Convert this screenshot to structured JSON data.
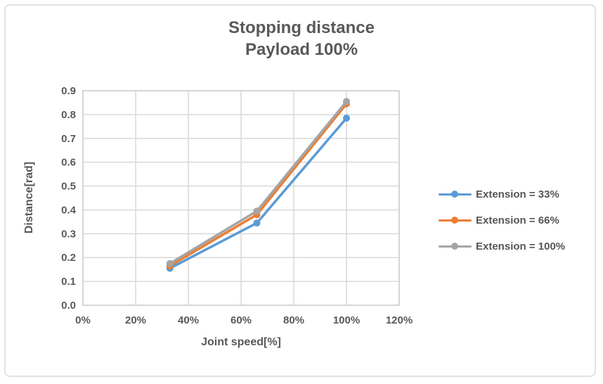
{
  "colors": {
    "frame_border": "#e2e2e2",
    "gridline": "#d9d9d9",
    "plot_border": "#cfcfcf",
    "text": "#595959",
    "background": "#ffffff"
  },
  "chart_data": {
    "type": "line",
    "title": "Stopping distance",
    "subtitle": "Payload 100%",
    "xlabel": "Joint speed[%]",
    "ylabel": "Distance[rad]",
    "xlim": [
      0,
      120
    ],
    "ylim": [
      0,
      0.9
    ],
    "grid": true,
    "legend_position": "right",
    "x_ticks": [
      "0%",
      "20%",
      "40%",
      "60%",
      "80%",
      "100%",
      "120%"
    ],
    "x_tick_values": [
      0,
      20,
      40,
      60,
      80,
      100,
      120
    ],
    "y_ticks": [
      "0.0",
      "0.1",
      "0.2",
      "0.3",
      "0.4",
      "0.5",
      "0.6",
      "0.7",
      "0.8",
      "0.9"
    ],
    "y_tick_values": [
      0,
      0.1,
      0.2,
      0.3,
      0.4,
      0.5,
      0.6,
      0.7,
      0.8,
      0.9
    ],
    "x": [
      33,
      66,
      100
    ],
    "series": [
      {
        "name": "Extension = 33%",
        "color": "#5B9BD5",
        "values": [
          0.155,
          0.345,
          0.785
        ]
      },
      {
        "name": "Extension = 66%",
        "color": "#ED7D31",
        "values": [
          0.165,
          0.38,
          0.845
        ]
      },
      {
        "name": "Extension = 100%",
        "color": "#A5A5A5",
        "values": [
          0.175,
          0.395,
          0.855
        ]
      }
    ]
  }
}
